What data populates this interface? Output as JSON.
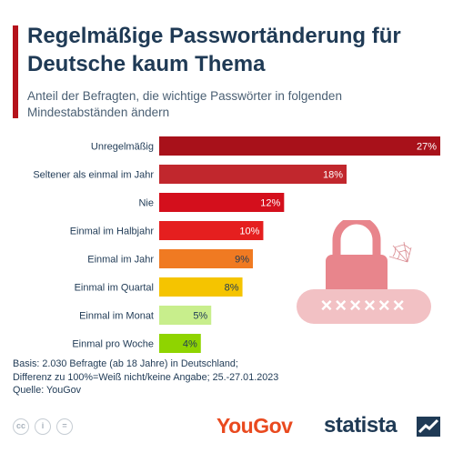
{
  "header": {
    "title": "Regelmäßige Passwortänderung für Deutsche kaum Thema",
    "subtitle": "Anteil der Befragten, die wichtige Passwörter in folgenden Mindestabständen ändern"
  },
  "chart_data": {
    "type": "bar",
    "orientation": "horizontal",
    "categories": [
      "Unregelmäßig",
      "Seltener als einmal im Jahr",
      "Nie",
      "Einmal im Halbjahr",
      "Einmal im Jahr",
      "Einmal im Quartal",
      "Einmal im Monat",
      "Einmal pro Woche"
    ],
    "values": [
      27,
      18,
      12,
      10,
      9,
      8,
      5,
      4
    ],
    "value_labels": [
      "27%",
      "18%",
      "12%",
      "10%",
      "9%",
      "8%",
      "5%",
      "4%"
    ],
    "colors": [
      "#a8111a",
      "#c1272d",
      "#d40f1c",
      "#e51f1f",
      "#f07a22",
      "#f5c400",
      "#c8ee8c",
      "#8fd400"
    ],
    "label_colors": [
      "#ffffff",
      "#ffffff",
      "#ffffff",
      "#ffffff",
      "#1f3a55",
      "#1f3a55",
      "#1f3a55",
      "#1f3a55"
    ],
    "xlim": [
      0,
      27
    ],
    "grid": false,
    "legend": "none"
  },
  "illustration": {
    "password_mask": "××××××",
    "icons": [
      "lock-icon",
      "spiderweb-icon"
    ],
    "colors": {
      "lock": "#e8858c",
      "field": "#f2c1c4"
    }
  },
  "footer": {
    "basis": "Basis: 2.030 Befragte (ab 18 Jahre) in Deutschland;",
    "note": "Differenz zu 100%=Weiß nicht/keine Angabe; 25.-27.01.2023",
    "source": "Quelle: YouGov"
  },
  "branding": {
    "cc_icons": [
      "cc",
      "i",
      "="
    ],
    "yougov": "YouGov",
    "statista": "statista"
  }
}
